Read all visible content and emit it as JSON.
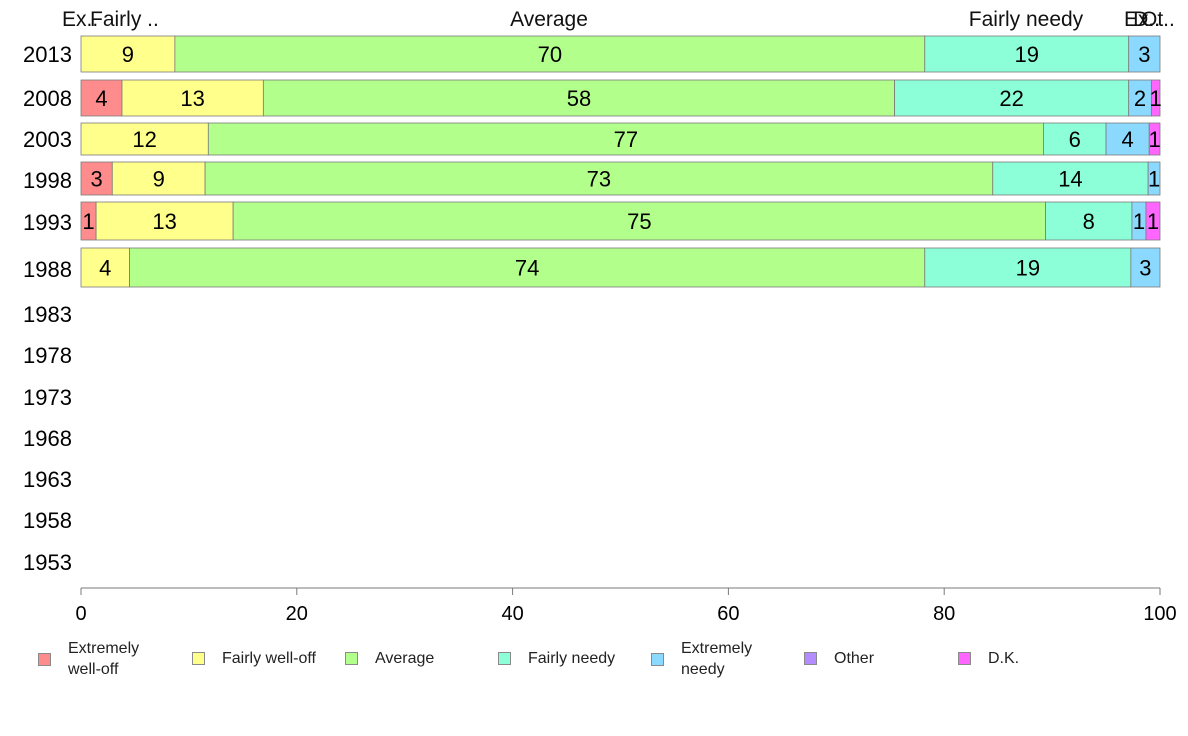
{
  "chart_data": {
    "type": "bar",
    "orientation": "horizontal",
    "stacked": true,
    "categories": [
      "2013",
      "2008",
      "2003",
      "1998",
      "1993",
      "1988",
      "1983",
      "1978",
      "1973",
      "1968",
      "1963",
      "1958",
      "1953"
    ],
    "series": [
      {
        "name": "Extremely well-off",
        "color": "#ff8c8c",
        "values": [
          0,
          4,
          0,
          3,
          1,
          0,
          null,
          null,
          null,
          null,
          null,
          null,
          null
        ],
        "shown": [
          0,
          3.8,
          0,
          2.9,
          1.4,
          0
        ]
      },
      {
        "name": "Fairly well-off",
        "color": "#ffff8c",
        "values": [
          9,
          13,
          12,
          9,
          13,
          4,
          null,
          null,
          null,
          null,
          null,
          null,
          null
        ],
        "shown": [
          8.7,
          13.1,
          11.8,
          8.6,
          12.7,
          4.5
        ]
      },
      {
        "name": "Average",
        "color": "#b3ff8c",
        "values": [
          70,
          58,
          77,
          73,
          75,
          74,
          null,
          null,
          null,
          null,
          null,
          null,
          null
        ],
        "shown": [
          69.5,
          58.5,
          77.4,
          73.0,
          75.3,
          73.7
        ]
      },
      {
        "name": "Fairly needy",
        "color": "#8cffd9",
        "values": [
          19,
          22,
          6,
          14,
          8,
          19,
          null,
          null,
          null,
          null,
          null,
          null,
          null
        ],
        "shown": [
          18.9,
          21.7,
          5.8,
          14.4,
          8.0,
          19.1
        ]
      },
      {
        "name": "Extremely needy",
        "color": "#8cd9ff",
        "values": [
          3,
          2,
          4,
          1,
          1,
          3,
          null,
          null,
          null,
          null,
          null,
          null,
          null
        ],
        "shown": [
          2.9,
          2.1,
          4.0,
          1.1,
          1.3,
          2.7
        ]
      },
      {
        "name": "Other",
        "color": "#b38cff",
        "values": [
          0,
          0,
          0,
          0,
          0,
          0,
          null,
          null,
          null,
          null,
          null,
          null,
          null
        ],
        "shown": [
          0,
          0,
          0,
          0,
          0,
          0
        ]
      },
      {
        "name": "D.K.",
        "color": "#ff66ff",
        "values": [
          0,
          1,
          1,
          0,
          1,
          0,
          null,
          null,
          null,
          null,
          null,
          null,
          null
        ],
        "shown": [
          0,
          0.8,
          1.0,
          0,
          1.3,
          0
        ]
      }
    ],
    "top_labels": [
      "Ex..",
      "Fairly ..",
      "Average",
      "Fairly needy",
      "Ex..",
      "Ot..",
      "D.."
    ],
    "xlim": [
      0,
      100
    ],
    "xticks": [
      0,
      20,
      40,
      60,
      80,
      100
    ],
    "grid": false,
    "legend_position": "bottom"
  },
  "legend": [
    {
      "label": "Extremely\nwell-off",
      "color": "#ff8c8c"
    },
    {
      "label": "Fairly well-off",
      "color": "#ffff8c"
    },
    {
      "label": "Average",
      "color": "#b3ff8c"
    },
    {
      "label": "Fairly needy",
      "color": "#8cffd9"
    },
    {
      "label": "Extremely\nneedy",
      "color": "#8cd9ff"
    },
    {
      "label": "Other",
      "color": "#b38cff"
    },
    {
      "label": "D.K.",
      "color": "#ff66ff"
    }
  ]
}
